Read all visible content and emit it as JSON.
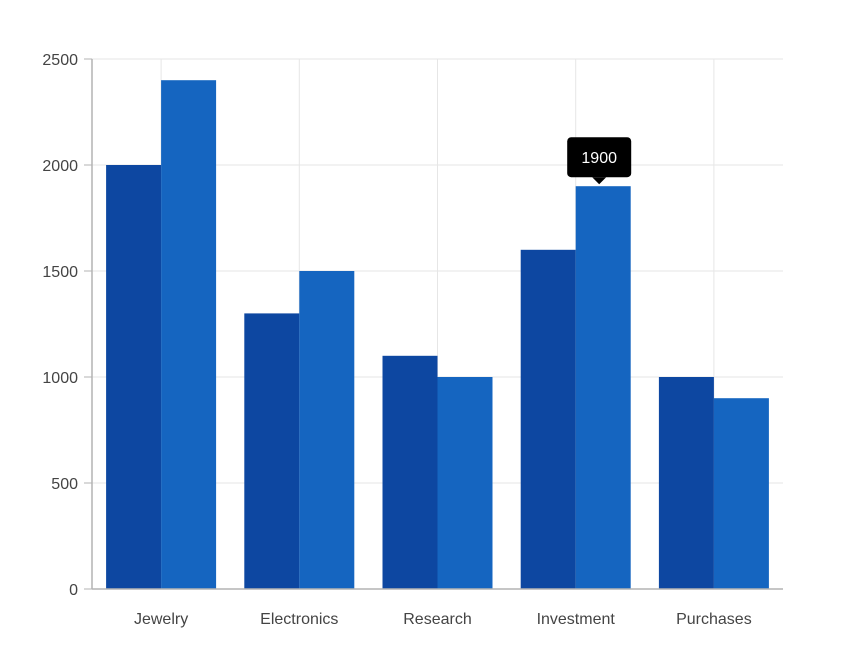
{
  "chart_data": {
    "type": "bar",
    "categories": [
      "Jewelry",
      "Electronics",
      "Research",
      "Investment",
      "Purchases"
    ],
    "series": [
      {
        "values": [
          2000,
          1300,
          1100,
          1600,
          1000
        ],
        "color": "#0d47a1"
      },
      {
        "values": [
          2400,
          1500,
          1000,
          1900,
          900
        ],
        "color": "#1565c0"
      }
    ],
    "y_ticks": [
      "0",
      "500",
      "1000",
      "1500",
      "2000",
      "2500"
    ],
    "ylim": [
      0,
      2500
    ],
    "grid": true,
    "tooltip": {
      "text": "1900",
      "category": "Investment",
      "series_index": 1
    }
  },
  "colors": {
    "grid": "#e6e6e6",
    "axis": "#b3b3b3",
    "tooltip_bg": "#000000"
  }
}
